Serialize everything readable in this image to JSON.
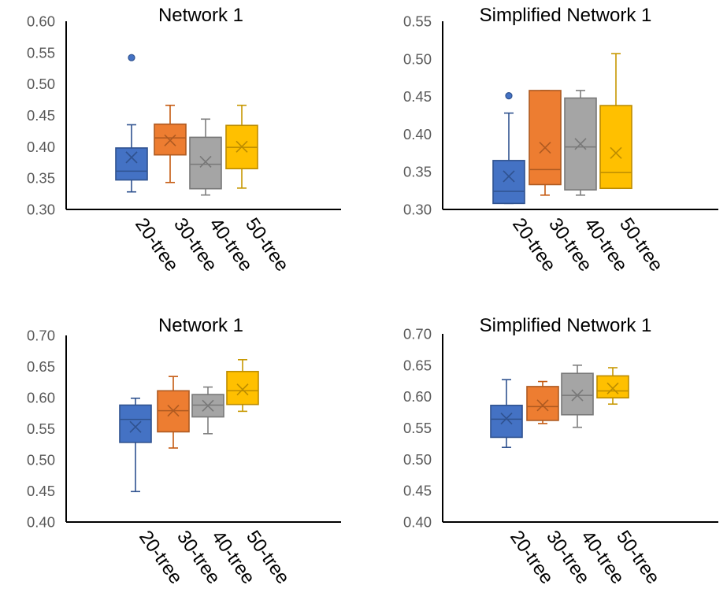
{
  "chart_data": [
    {
      "type": "box",
      "title": "Network 1",
      "ylim": [
        0.3,
        0.6
      ],
      "ytick_labels": [
        "0.60",
        "0.55",
        "0.50",
        "0.45",
        "0.40",
        "0.35",
        "0.30"
      ],
      "categories": [
        "20-tree",
        "30-tree",
        "40-tree",
        "50-tree"
      ],
      "series": [
        {
          "name": "20-tree",
          "color": "#4472c4",
          "min": 0.328,
          "q1": 0.347,
          "median": 0.361,
          "q3": 0.398,
          "max": 0.435,
          "mean": 0.383,
          "outliers": [
            0.542
          ]
        },
        {
          "name": "30-tree",
          "color": "#ed7d31",
          "min": 0.343,
          "q1": 0.387,
          "median": 0.414,
          "q3": 0.436,
          "max": 0.466,
          "mean": 0.41,
          "outliers": []
        },
        {
          "name": "40-tree",
          "color": "#a5a5a5",
          "min": 0.323,
          "q1": 0.333,
          "median": 0.372,
          "q3": 0.415,
          "max": 0.444,
          "mean": 0.376,
          "outliers": []
        },
        {
          "name": "50-tree",
          "color": "#ffc000",
          "min": 0.334,
          "q1": 0.365,
          "median": 0.399,
          "q3": 0.434,
          "max": 0.466,
          "mean": 0.4,
          "outliers": []
        }
      ]
    },
    {
      "type": "box",
      "title": "Simplified Network 1",
      "ylim": [
        0.3,
        0.55
      ],
      "ytick_labels": [
        "0.55",
        "0.50",
        "0.45",
        "0.40",
        "0.35",
        "0.30"
      ],
      "categories": [
        "20-tree",
        "30-tree",
        "40-tree",
        "50-tree"
      ],
      "series": [
        {
          "name": "20-tree",
          "color": "#4472c4",
          "min": 0.308,
          "q1": 0.308,
          "median": 0.324,
          "q3": 0.365,
          "max": 0.428,
          "mean": 0.344,
          "outliers": [
            0.451
          ]
        },
        {
          "name": "30-tree",
          "color": "#ed7d31",
          "min": 0.319,
          "q1": 0.333,
          "median": 0.353,
          "q3": 0.458,
          "max": 0.458,
          "mean": 0.382,
          "outliers": []
        },
        {
          "name": "40-tree",
          "color": "#a5a5a5",
          "min": 0.319,
          "q1": 0.326,
          "median": 0.383,
          "q3": 0.448,
          "max": 0.458,
          "mean": 0.387,
          "outliers": []
        },
        {
          "name": "50-tree",
          "color": "#ffc000",
          "min": 0.328,
          "q1": 0.328,
          "median": 0.349,
          "q3": 0.438,
          "max": 0.507,
          "mean": 0.375,
          "outliers": []
        }
      ]
    },
    {
      "type": "box",
      "title": "Network 1",
      "ylim": [
        0.4,
        0.7
      ],
      "ytick_labels": [
        "0.70",
        "0.65",
        "0.60",
        "0.55",
        "0.50",
        "0.45",
        "0.40"
      ],
      "categories": [
        "20-tree",
        "30-tree",
        "40-tree",
        "50-tree"
      ],
      "series": [
        {
          "name": "20-tree",
          "color": "#4472c4",
          "min": 0.449,
          "q1": 0.528,
          "median": 0.565,
          "q3": 0.588,
          "max": 0.599,
          "mean": 0.553,
          "outliers": []
        },
        {
          "name": "30-tree",
          "color": "#ed7d31",
          "min": 0.519,
          "q1": 0.545,
          "median": 0.579,
          "q3": 0.611,
          "max": 0.634,
          "mean": 0.579,
          "outliers": []
        },
        {
          "name": "40-tree",
          "color": "#a5a5a5",
          "min": 0.542,
          "q1": 0.569,
          "median": 0.588,
          "q3": 0.605,
          "max": 0.617,
          "mean": 0.587,
          "outliers": []
        },
        {
          "name": "50-tree",
          "color": "#ffc000",
          "min": 0.578,
          "q1": 0.589,
          "median": 0.611,
          "q3": 0.642,
          "max": 0.661,
          "mean": 0.613,
          "outliers": []
        }
      ]
    },
    {
      "type": "box",
      "title": "Simplified Network 1",
      "ylim": [
        0.4,
        0.7
      ],
      "ytick_labels": [
        "0.70",
        "0.65",
        "0.60",
        "0.55",
        "0.50",
        "0.45",
        "0.40"
      ],
      "categories": [
        "20-tree",
        "30-tree",
        "40-tree",
        "50-tree"
      ],
      "series": [
        {
          "name": "20-tree",
          "color": "#4472c4",
          "min": 0.519,
          "q1": 0.535,
          "median": 0.564,
          "q3": 0.586,
          "max": 0.627,
          "mean": 0.565,
          "outliers": []
        },
        {
          "name": "30-tree",
          "color": "#ed7d31",
          "min": 0.557,
          "q1": 0.562,
          "median": 0.584,
          "q3": 0.616,
          "max": 0.624,
          "mean": 0.586,
          "outliers": []
        },
        {
          "name": "40-tree",
          "color": "#a5a5a5",
          "min": 0.551,
          "q1": 0.571,
          "median": 0.602,
          "q3": 0.637,
          "max": 0.65,
          "mean": 0.602,
          "outliers": []
        },
        {
          "name": "50-tree",
          "color": "#ffc000",
          "min": 0.588,
          "q1": 0.598,
          "median": 0.609,
          "q3": 0.633,
          "max": 0.646,
          "mean": 0.613,
          "outliers": []
        }
      ]
    }
  ]
}
